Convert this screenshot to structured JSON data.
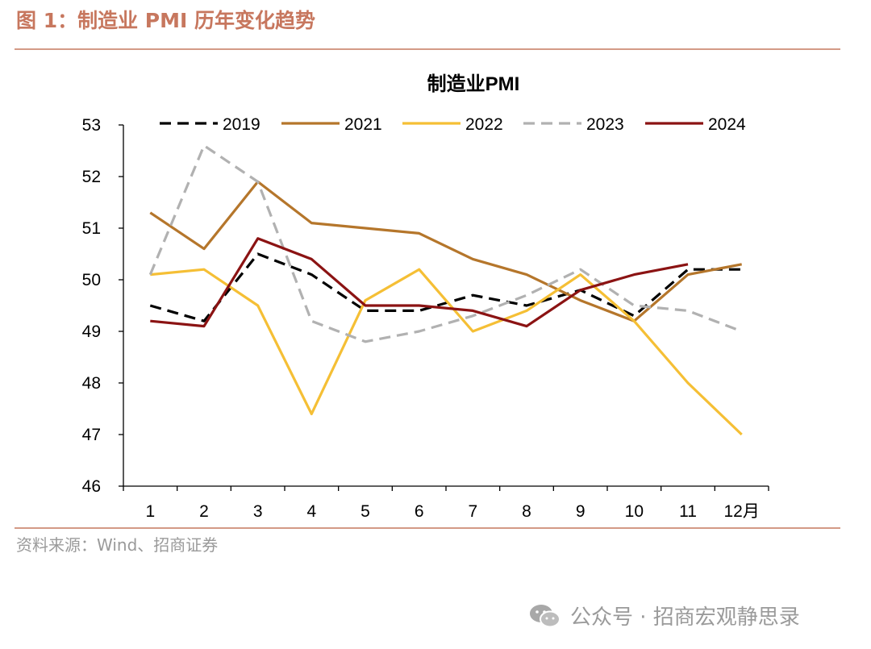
{
  "figure": {
    "caption": "图 1：制造业 PMI 历年变化趋势",
    "source": "资料来源：Wind、招商证券",
    "watermark": "公众号 · 招商宏观静思录"
  },
  "chart_data": {
    "type": "line",
    "title": "制造业PMI",
    "xlabel": "",
    "ylabel": "",
    "categories": [
      "1",
      "2",
      "3",
      "4",
      "5",
      "6",
      "7",
      "8",
      "9",
      "10",
      "11",
      "12月"
    ],
    "ylim": [
      46,
      53
    ],
    "yticks": [
      46,
      47,
      48,
      49,
      50,
      51,
      52,
      53
    ],
    "legend_position": "top",
    "grid": false,
    "series": [
      {
        "name": "2019",
        "color": "#000000",
        "dash": "dashed",
        "values": [
          49.5,
          49.2,
          50.5,
          50.1,
          49.4,
          49.4,
          49.7,
          49.5,
          49.8,
          49.3,
          50.2,
          50.2
        ]
      },
      {
        "name": "2021",
        "color": "#b5762b",
        "dash": "solid",
        "values": [
          51.3,
          50.6,
          51.9,
          51.1,
          51.0,
          50.9,
          50.4,
          50.1,
          49.6,
          49.2,
          50.1,
          50.3
        ]
      },
      {
        "name": "2022",
        "color": "#f5bf35",
        "dash": "solid",
        "values": [
          50.1,
          50.2,
          49.5,
          47.4,
          49.6,
          50.2,
          49.0,
          49.4,
          50.1,
          49.2,
          48.0,
          47.0
        ]
      },
      {
        "name": "2023",
        "color": "#b1b1b1",
        "dash": "dashed",
        "values": [
          50.1,
          52.6,
          51.9,
          49.2,
          48.8,
          49.0,
          49.3,
          49.7,
          50.2,
          49.5,
          49.4,
          49.0
        ]
      },
      {
        "name": "2024",
        "color": "#8b1313",
        "dash": "solid",
        "values": [
          49.2,
          49.1,
          50.8,
          50.4,
          49.5,
          49.5,
          49.4,
          49.1,
          49.8,
          50.1,
          50.3,
          null
        ]
      }
    ]
  }
}
